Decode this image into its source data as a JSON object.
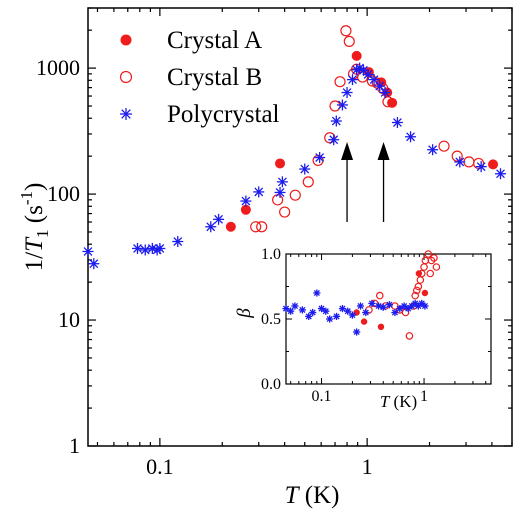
{
  "chart_data": [
    {
      "type": "scatter",
      "x_scale": "log",
      "y_scale": "log",
      "xlim": [
        0.045,
        5
      ],
      "ylim": [
        1,
        3000
      ],
      "x_ticks": [
        0.1,
        1
      ],
      "x_tick_labels": [
        "0.1",
        "1"
      ],
      "y_ticks": [
        1,
        10,
        100,
        1000
      ],
      "y_tick_labels": [
        "1",
        "10",
        "100",
        "1000"
      ],
      "xlabel": {
        "italic": "T",
        "rest": " (K)"
      },
      "ylabel": {
        "pre": "1/",
        "italic": "T",
        "sub": "1",
        "mid": " (s",
        "sup": "-1",
        "post": ")"
      },
      "grid": false,
      "legend_position": "top-left",
      "colors": {
        "red": "#ee1c1c",
        "blue": "#1c1cee"
      },
      "annotations": [
        "upward arrow at T = 0.8 K",
        "upward arrow at T = 1.2 K"
      ],
      "series": [
        {
          "name": "Crystal A",
          "marker": "filled-circle",
          "color": "#ee1c1c",
          "points": [
            [
              0.22,
              55
            ],
            [
              0.26,
              75
            ],
            [
              0.38,
              175
            ],
            [
              0.89,
              1250
            ],
            [
              1.02,
              930
            ],
            [
              1.17,
              770
            ],
            [
              1.25,
              640
            ],
            [
              1.32,
              530
            ],
            [
              4.05,
              172
            ]
          ]
        },
        {
          "name": "Crystal B",
          "marker": "open-circle",
          "color": "#ee1c1c",
          "points": [
            [
              0.29,
              55
            ],
            [
              0.31,
              55
            ],
            [
              0.37,
              90
            ],
            [
              0.4,
              72
            ],
            [
              0.45,
              98
            ],
            [
              0.52,
              125
            ],
            [
              0.58,
              185
            ],
            [
              0.66,
              280
            ],
            [
              0.7,
              500
            ],
            [
              0.74,
              780
            ],
            [
              0.79,
              1980
            ],
            [
              0.82,
              1630
            ],
            [
              0.86,
              900
            ],
            [
              0.89,
              980
            ],
            [
              0.95,
              850
            ],
            [
              1.06,
              790
            ],
            [
              1.12,
              760
            ],
            [
              1.19,
              690
            ],
            [
              1.26,
              540
            ],
            [
              2.35,
              240
            ],
            [
              2.72,
              200
            ],
            [
              3.1,
              180
            ],
            [
              3.45,
              175
            ]
          ]
        },
        {
          "name": "Polycrystal",
          "marker": "asterisk",
          "color": "#1c1cee",
          "points": [
            [
              0.045,
              35
            ],
            [
              0.048,
              28
            ],
            [
              0.078,
              37
            ],
            [
              0.085,
              36
            ],
            [
              0.092,
              37
            ],
            [
              0.097,
              36
            ],
            [
              0.1,
              37
            ],
            [
              0.122,
              42
            ],
            [
              0.176,
              55
            ],
            [
              0.192,
              63
            ],
            [
              0.26,
              88
            ],
            [
              0.3,
              104
            ],
            [
              0.38,
              103
            ],
            [
              0.39,
              125
            ],
            [
              0.5,
              158
            ],
            [
              0.59,
              195
            ],
            [
              0.69,
              270
            ],
            [
              0.71,
              380
            ],
            [
              0.76,
              510
            ],
            [
              0.8,
              640
            ],
            [
              0.85,
              810
            ],
            [
              0.89,
              970
            ],
            [
              0.92,
              1000
            ],
            [
              0.96,
              960
            ],
            [
              1.01,
              890
            ],
            [
              1.08,
              810
            ],
            [
              1.15,
              720
            ],
            [
              1.22,
              640
            ],
            [
              1.4,
              370
            ],
            [
              1.62,
              285
            ],
            [
              2.07,
              225
            ],
            [
              2.8,
              180
            ],
            [
              3.55,
              165
            ],
            [
              4.4,
              145
            ]
          ]
        }
      ]
    },
    {
      "type": "scatter",
      "role": "inset",
      "x_scale": "log",
      "y_scale": "linear",
      "xlim": [
        0.045,
        4.5
      ],
      "ylim": [
        0,
        1
      ],
      "x_ticks": [
        0.1,
        1
      ],
      "x_tick_labels": [
        "0.1",
        "1"
      ],
      "y_ticks": [
        0,
        0.5,
        1
      ],
      "y_tick_labels": [
        "0.0",
        "0.5",
        "1.0"
      ],
      "xlabel": {
        "italic": "T",
        "rest": " (K)"
      },
      "ylabel": "β",
      "grid": false,
      "series": [
        {
          "marker": "filled-circle",
          "color": "#ee1c1c",
          "points": [
            [
              0.22,
              0.55
            ],
            [
              0.26,
              0.48
            ],
            [
              0.38,
              0.44
            ],
            [
              0.89,
              0.85
            ],
            [
              1.02,
              0.7
            ]
          ]
        },
        {
          "marker": "open-circle",
          "color": "#ee1c1c",
          "points": [
            [
              0.29,
              0.57
            ],
            [
              0.33,
              0.62
            ],
            [
              0.37,
              0.68
            ],
            [
              0.42,
              0.6
            ],
            [
              0.52,
              0.6
            ],
            [
              0.58,
              0.57
            ],
            [
              0.66,
              0.55
            ],
            [
              0.72,
              0.37
            ],
            [
              0.79,
              0.6
            ],
            [
              0.82,
              0.68
            ],
            [
              0.85,
              0.72
            ],
            [
              0.88,
              0.75
            ],
            [
              0.92,
              0.8
            ],
            [
              0.95,
              0.85
            ],
            [
              1.0,
              0.9
            ],
            [
              1.03,
              0.95
            ],
            [
              1.1,
              1.0
            ],
            [
              1.15,
              0.85
            ],
            [
              1.18,
              0.95
            ],
            [
              1.25,
              0.97
            ],
            [
              1.32,
              0.9
            ]
          ]
        },
        {
          "marker": "asterisk",
          "color": "#1c1cee",
          "points": [
            [
              0.045,
              0.58
            ],
            [
              0.05,
              0.56
            ],
            [
              0.055,
              0.6
            ],
            [
              0.065,
              0.57
            ],
            [
              0.075,
              0.52
            ],
            [
              0.082,
              0.55
            ],
            [
              0.09,
              0.7
            ],
            [
              0.1,
              0.58
            ],
            [
              0.11,
              0.56
            ],
            [
              0.12,
              0.5
            ],
            [
              0.14,
              0.52
            ],
            [
              0.16,
              0.58
            ],
            [
              0.18,
              0.56
            ],
            [
              0.2,
              0.53
            ],
            [
              0.22,
              0.4
            ],
            [
              0.24,
              0.6
            ],
            [
              0.27,
              0.55
            ],
            [
              0.31,
              0.62
            ],
            [
              0.36,
              0.6
            ],
            [
              0.4,
              0.59
            ],
            [
              0.46,
              0.61
            ],
            [
              0.52,
              0.55
            ],
            [
              0.58,
              0.58
            ],
            [
              0.64,
              0.6
            ],
            [
              0.7,
              0.58
            ],
            [
              0.76,
              0.6
            ],
            [
              0.82,
              0.62
            ],
            [
              0.88,
              0.6
            ],
            [
              0.95,
              0.62
            ],
            [
              1.02,
              0.6
            ]
          ]
        }
      ]
    }
  ]
}
